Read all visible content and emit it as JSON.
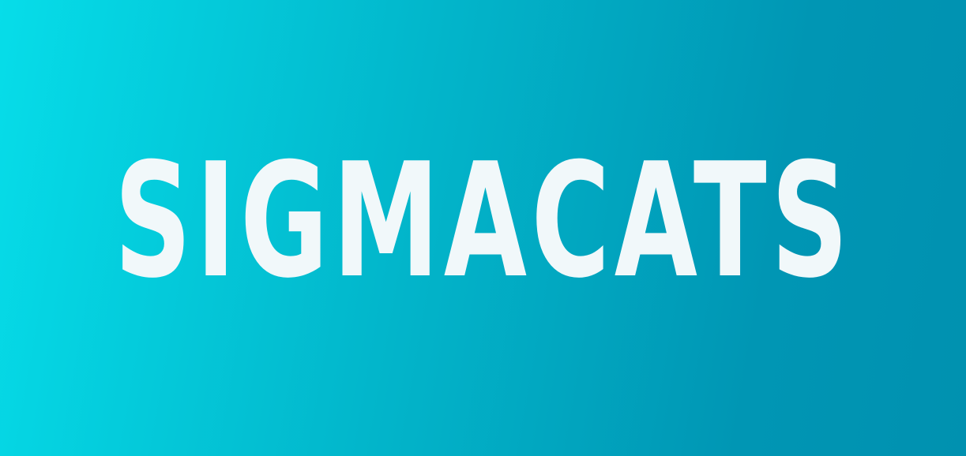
{
  "banner": {
    "title": "SIGMACATS",
    "background_start_color": "#06dde9",
    "background_end_color": "#0091b0",
    "text_color": "#f1f8fa"
  }
}
